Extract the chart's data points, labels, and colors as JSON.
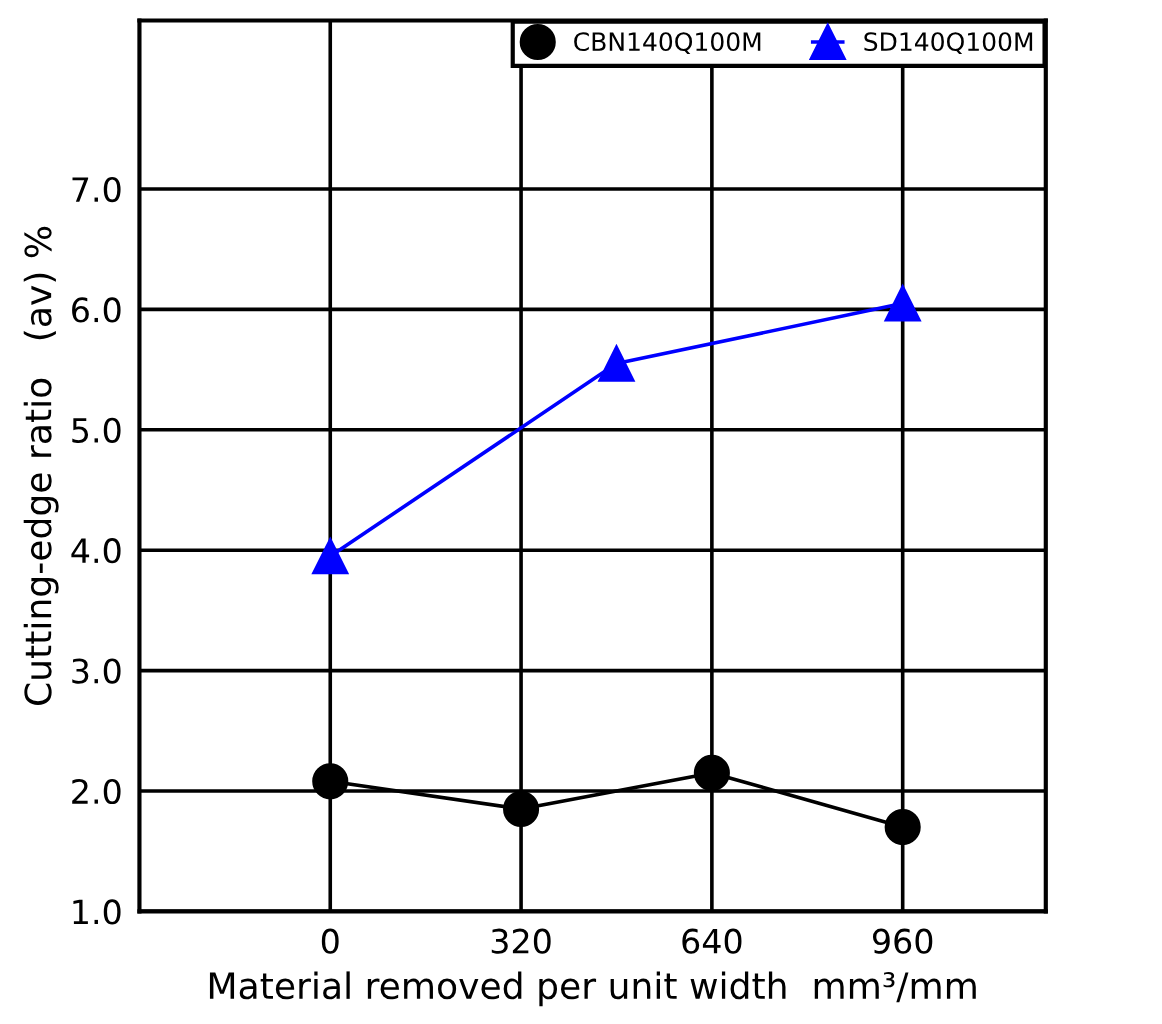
{
  "chart_data": {
    "type": "line",
    "xlabel": "Material removed per unit width  mm³/mm",
    "ylabel": "Cutting-edge ratio   (av) %",
    "series": [
      {
        "name": "CBN140Q100M",
        "color": "#000000",
        "marker": "circle",
        "x": [
          0,
          320,
          640,
          960
        ],
        "values": [
          2.08,
          1.85,
          2.15,
          1.7
        ]
      },
      {
        "name": "SD140Q100M",
        "color": "#0000ff",
        "marker": "triangle",
        "x": [
          0,
          480,
          960
        ],
        "values": [
          3.95,
          5.55,
          6.05
        ]
      }
    ],
    "xlim": [
      -320,
      1200
    ],
    "xticks": [
      0,
      320,
      640,
      960
    ],
    "ylim": [
      1.0,
      8.4
    ],
    "yticks": [
      {
        "value": 1,
        "label": "1.0"
      },
      {
        "value": 2,
        "label": "2.0"
      },
      {
        "value": 3,
        "label": "3.0"
      },
      {
        "value": 4,
        "label": "4.0"
      },
      {
        "value": 5,
        "label": "5.0"
      },
      {
        "value": 6,
        "label": "6.0"
      },
      {
        "value": 7,
        "label": "7.0"
      }
    ],
    "grid": true,
    "legend": "top right"
  }
}
